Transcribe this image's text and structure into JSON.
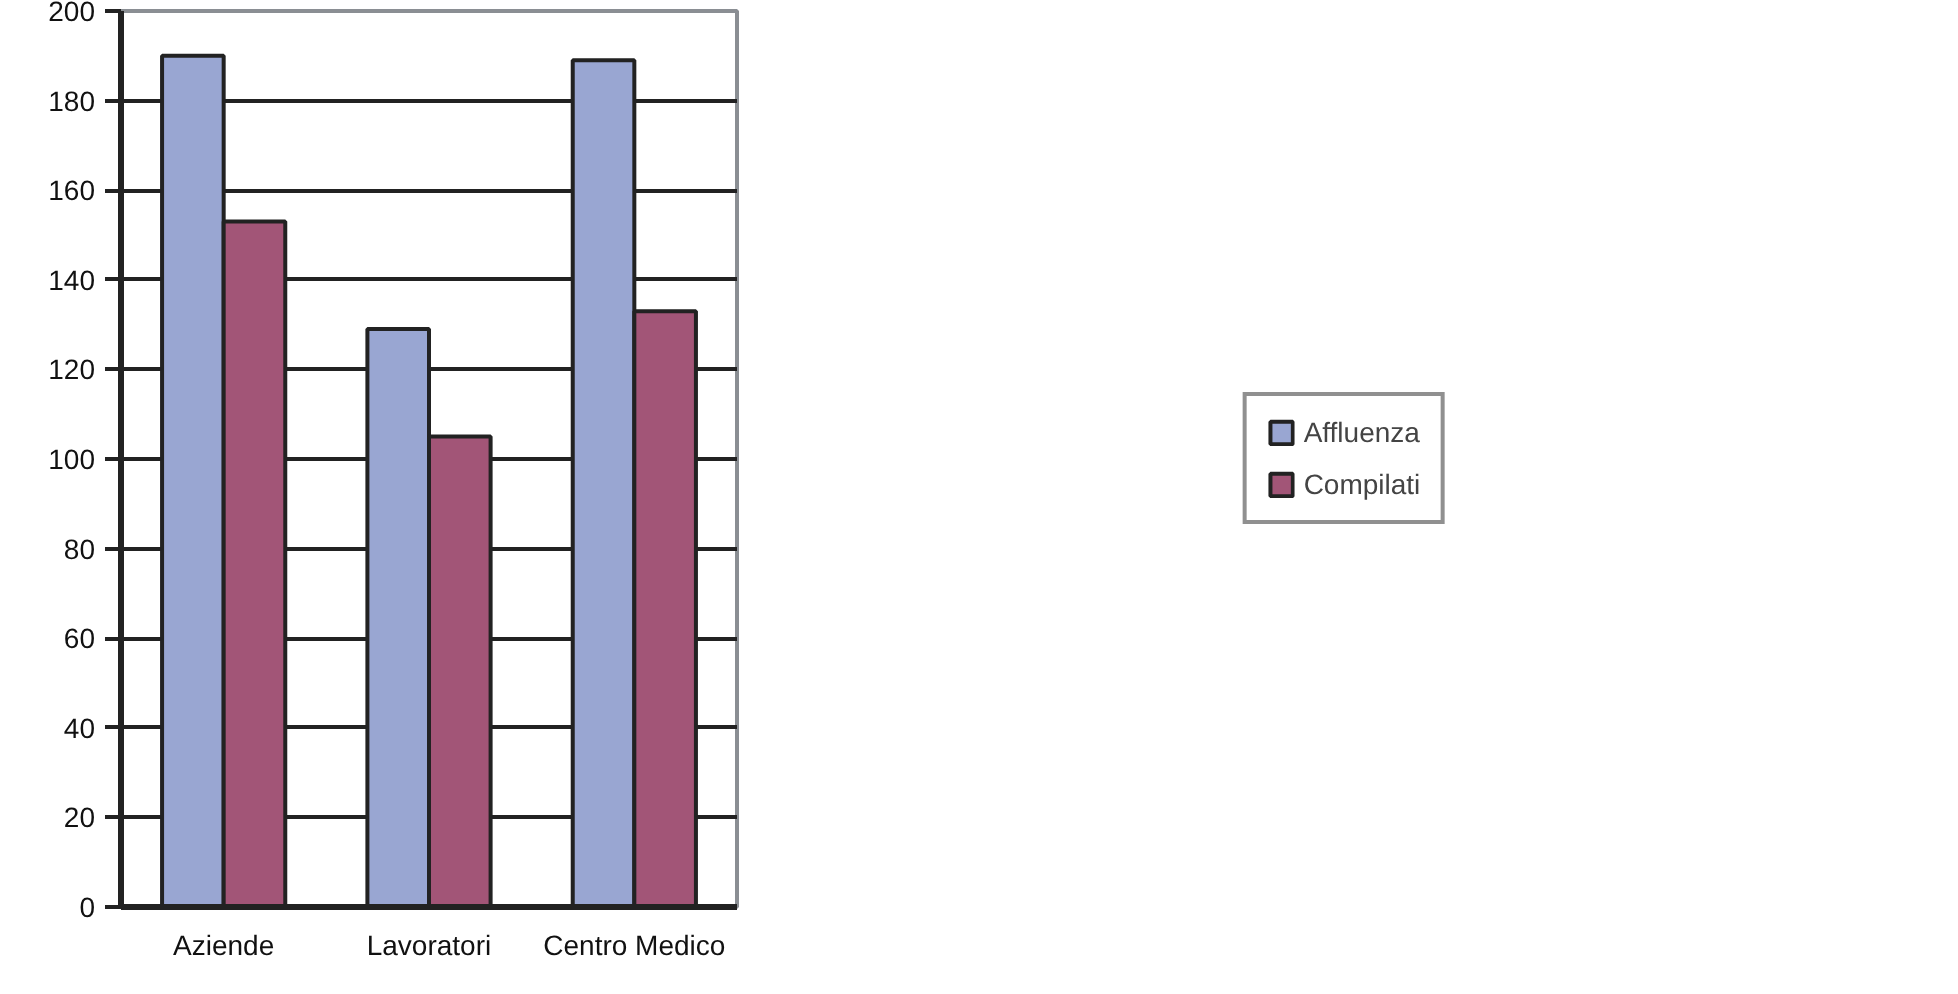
{
  "chart_data": {
    "type": "bar",
    "categories": [
      "Aziende",
      "Lavoratori",
      "Centro Medico"
    ],
    "series": [
      {
        "name": "Affluenza",
        "color": "#99a6d2",
        "values": [
          190,
          129,
          189
        ]
      },
      {
        "name": "Compilati",
        "color": "#a25577",
        "values": [
          153,
          105,
          133
        ]
      }
    ],
    "ylim": [
      0,
      200
    ],
    "yticks": [
      0,
      20,
      40,
      60,
      80,
      100,
      120,
      140,
      160,
      180,
      200
    ],
    "grid": "y",
    "legend": "right"
  }
}
